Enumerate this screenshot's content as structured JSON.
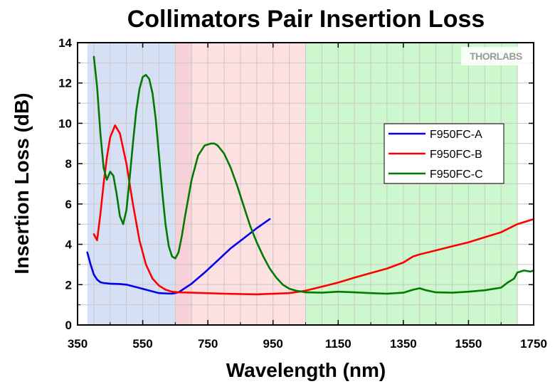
{
  "chart_data": {
    "type": "line",
    "title": "Collimators Pair Insertion Loss",
    "xlabel": "Wavelength (nm)",
    "ylabel": "Insertion Loss (dB)",
    "xlim": [
      350,
      1750
    ],
    "ylim": [
      0,
      14
    ],
    "xticks": [
      350,
      550,
      750,
      950,
      1150,
      1350,
      1550,
      1750
    ],
    "xtick_labels": [
      "350",
      "550",
      "750",
      "950",
      "1150",
      "1350",
      "1550",
      "1750"
    ],
    "yticks": [
      0,
      2,
      4,
      6,
      8,
      10,
      12,
      14
    ],
    "ytick_labels": [
      "0",
      "2",
      "4",
      "6",
      "8",
      "10",
      "12",
      "14"
    ],
    "grid": true,
    "legend_position": "center-right",
    "watermark": "THORLABS",
    "bands": [
      {
        "from": 380,
        "to": 650,
        "color": "#d6e0f5"
      },
      {
        "from": 650,
        "to": 700,
        "color": "#f8d0d8"
      },
      {
        "from": 700,
        "to": 1050,
        "color": "#fde0e0"
      },
      {
        "from": 1050,
        "to": 1700,
        "color": "#cdf8cd"
      }
    ],
    "series": [
      {
        "name": "F950FC-A",
        "color": "#0000ee",
        "x": [
          380,
          390,
          400,
          410,
          420,
          430,
          450,
          480,
          500,
          530,
          560,
          600,
          640,
          660,
          700,
          740,
          780,
          820,
          860,
          900,
          940
        ],
        "y": [
          3.6,
          3.0,
          2.5,
          2.25,
          2.12,
          2.08,
          2.05,
          2.03,
          2.0,
          1.88,
          1.75,
          1.58,
          1.55,
          1.62,
          2.05,
          2.6,
          3.2,
          3.8,
          4.3,
          4.8,
          5.25
        ]
      },
      {
        "name": "F950FC-B",
        "color": "#ff0000",
        "x": [
          400,
          410,
          420,
          430,
          440,
          450,
          465,
          480,
          500,
          520,
          540,
          560,
          580,
          600,
          620,
          640,
          660,
          700,
          800,
          900,
          1000,
          1050,
          1100,
          1150,
          1200,
          1300,
          1350,
          1380,
          1400,
          1450,
          1500,
          1550,
          1600,
          1650,
          1700,
          1750
        ],
        "y": [
          4.5,
          4.2,
          5.5,
          7.0,
          8.3,
          9.3,
          9.9,
          9.5,
          8.0,
          6.0,
          4.2,
          3.0,
          2.3,
          1.95,
          1.75,
          1.65,
          1.62,
          1.6,
          1.55,
          1.52,
          1.58,
          1.7,
          1.9,
          2.1,
          2.35,
          2.8,
          3.1,
          3.4,
          3.5,
          3.7,
          3.9,
          4.1,
          4.35,
          4.6,
          5.0,
          5.25
        ]
      },
      {
        "name": "F950FC-C",
        "color": "#007a00",
        "x": [
          400,
          410,
          420,
          430,
          440,
          450,
          460,
          470,
          480,
          490,
          500,
          510,
          520,
          530,
          540,
          550,
          560,
          570,
          580,
          590,
          600,
          610,
          620,
          630,
          640,
          650,
          660,
          670,
          680,
          700,
          720,
          740,
          760,
          770,
          780,
          800,
          820,
          840,
          860,
          880,
          900,
          920,
          940,
          960,
          980,
          1000,
          1020,
          1040,
          1050,
          1100,
          1150,
          1200,
          1250,
          1300,
          1350,
          1380,
          1400,
          1420,
          1450,
          1500,
          1550,
          1600,
          1650,
          1670,
          1690,
          1700,
          1720,
          1740,
          1750
        ],
        "y": [
          13.3,
          11.8,
          9.5,
          7.8,
          7.2,
          7.6,
          7.4,
          6.5,
          5.4,
          5.0,
          5.7,
          7.3,
          9.0,
          10.6,
          11.7,
          12.3,
          12.4,
          12.2,
          11.5,
          10.2,
          8.4,
          6.6,
          5.0,
          3.9,
          3.4,
          3.3,
          3.6,
          4.4,
          5.4,
          7.2,
          8.4,
          8.9,
          9.0,
          9.0,
          8.9,
          8.5,
          7.8,
          6.9,
          5.9,
          4.9,
          4.1,
          3.4,
          2.8,
          2.35,
          2.0,
          1.8,
          1.7,
          1.65,
          1.62,
          1.6,
          1.65,
          1.62,
          1.58,
          1.55,
          1.6,
          1.75,
          1.82,
          1.72,
          1.62,
          1.6,
          1.65,
          1.72,
          1.85,
          2.1,
          2.3,
          2.6,
          2.7,
          2.65,
          2.7
        ]
      }
    ]
  }
}
